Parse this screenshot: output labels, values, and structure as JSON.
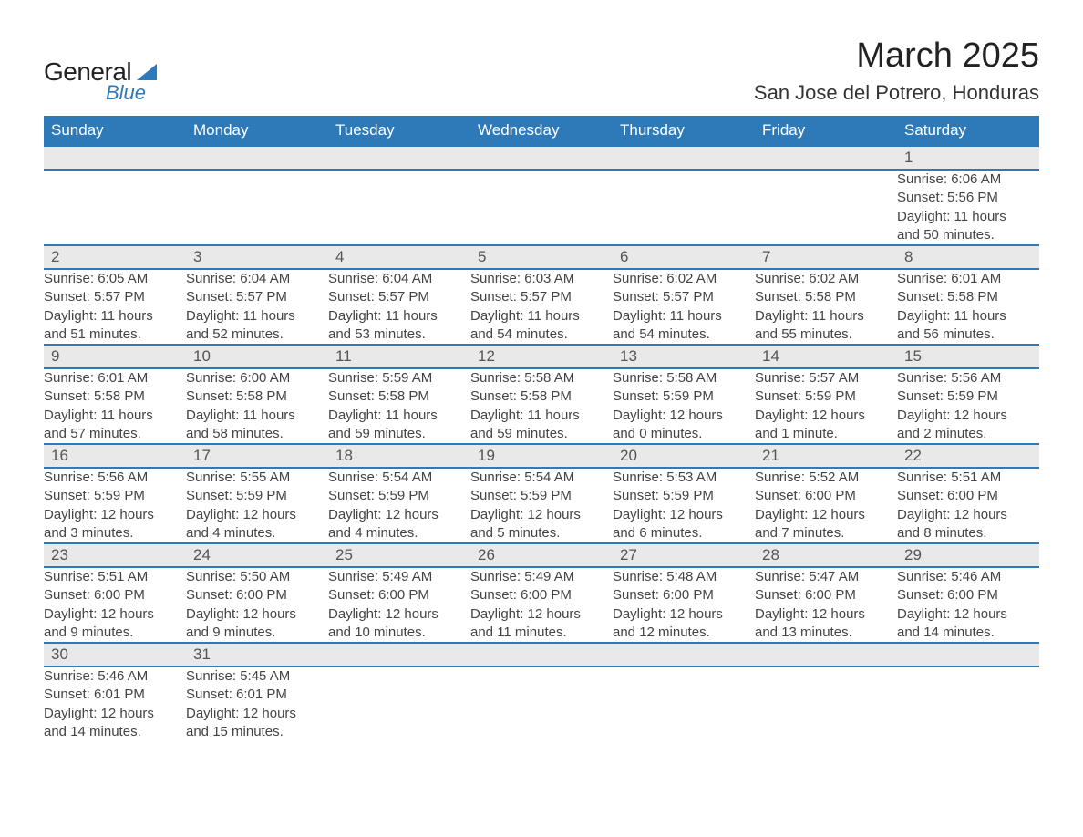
{
  "logo": {
    "word1": "General",
    "word2": "Blue"
  },
  "title": "March 2025",
  "location": "San Jose del Potrero, Honduras",
  "colors": {
    "header_bg": "#2e7ab8",
    "header_text": "#ffffff",
    "daynum_bg": "#e9e9e9",
    "rule": "#2e7ab8",
    "body_text": "#444444",
    "page_bg": "#ffffff"
  },
  "typography": {
    "title_fontsize": 38,
    "location_fontsize": 22,
    "header_fontsize": 17,
    "daynum_fontsize": 17,
    "detail_fontsize": 15
  },
  "day_headers": [
    "Sunday",
    "Monday",
    "Tuesday",
    "Wednesday",
    "Thursday",
    "Friday",
    "Saturday"
  ],
  "weeks": [
    [
      null,
      null,
      null,
      null,
      null,
      null,
      {
        "n": "1",
        "sr": "Sunrise: 6:06 AM",
        "ss": "Sunset: 5:56 PM",
        "d1": "Daylight: 11 hours",
        "d2": "and 50 minutes."
      }
    ],
    [
      {
        "n": "2",
        "sr": "Sunrise: 6:05 AM",
        "ss": "Sunset: 5:57 PM",
        "d1": "Daylight: 11 hours",
        "d2": "and 51 minutes."
      },
      {
        "n": "3",
        "sr": "Sunrise: 6:04 AM",
        "ss": "Sunset: 5:57 PM",
        "d1": "Daylight: 11 hours",
        "d2": "and 52 minutes."
      },
      {
        "n": "4",
        "sr": "Sunrise: 6:04 AM",
        "ss": "Sunset: 5:57 PM",
        "d1": "Daylight: 11 hours",
        "d2": "and 53 minutes."
      },
      {
        "n": "5",
        "sr": "Sunrise: 6:03 AM",
        "ss": "Sunset: 5:57 PM",
        "d1": "Daylight: 11 hours",
        "d2": "and 54 minutes."
      },
      {
        "n": "6",
        "sr": "Sunrise: 6:02 AM",
        "ss": "Sunset: 5:57 PM",
        "d1": "Daylight: 11 hours",
        "d2": "and 54 minutes."
      },
      {
        "n": "7",
        "sr": "Sunrise: 6:02 AM",
        "ss": "Sunset: 5:58 PM",
        "d1": "Daylight: 11 hours",
        "d2": "and 55 minutes."
      },
      {
        "n": "8",
        "sr": "Sunrise: 6:01 AM",
        "ss": "Sunset: 5:58 PM",
        "d1": "Daylight: 11 hours",
        "d2": "and 56 minutes."
      }
    ],
    [
      {
        "n": "9",
        "sr": "Sunrise: 6:01 AM",
        "ss": "Sunset: 5:58 PM",
        "d1": "Daylight: 11 hours",
        "d2": "and 57 minutes."
      },
      {
        "n": "10",
        "sr": "Sunrise: 6:00 AM",
        "ss": "Sunset: 5:58 PM",
        "d1": "Daylight: 11 hours",
        "d2": "and 58 minutes."
      },
      {
        "n": "11",
        "sr": "Sunrise: 5:59 AM",
        "ss": "Sunset: 5:58 PM",
        "d1": "Daylight: 11 hours",
        "d2": "and 59 minutes."
      },
      {
        "n": "12",
        "sr": "Sunrise: 5:58 AM",
        "ss": "Sunset: 5:58 PM",
        "d1": "Daylight: 11 hours",
        "d2": "and 59 minutes."
      },
      {
        "n": "13",
        "sr": "Sunrise: 5:58 AM",
        "ss": "Sunset: 5:59 PM",
        "d1": "Daylight: 12 hours",
        "d2": "and 0 minutes."
      },
      {
        "n": "14",
        "sr": "Sunrise: 5:57 AM",
        "ss": "Sunset: 5:59 PM",
        "d1": "Daylight: 12 hours",
        "d2": "and 1 minute."
      },
      {
        "n": "15",
        "sr": "Sunrise: 5:56 AM",
        "ss": "Sunset: 5:59 PM",
        "d1": "Daylight: 12 hours",
        "d2": "and 2 minutes."
      }
    ],
    [
      {
        "n": "16",
        "sr": "Sunrise: 5:56 AM",
        "ss": "Sunset: 5:59 PM",
        "d1": "Daylight: 12 hours",
        "d2": "and 3 minutes."
      },
      {
        "n": "17",
        "sr": "Sunrise: 5:55 AM",
        "ss": "Sunset: 5:59 PM",
        "d1": "Daylight: 12 hours",
        "d2": "and 4 minutes."
      },
      {
        "n": "18",
        "sr": "Sunrise: 5:54 AM",
        "ss": "Sunset: 5:59 PM",
        "d1": "Daylight: 12 hours",
        "d2": "and 4 minutes."
      },
      {
        "n": "19",
        "sr": "Sunrise: 5:54 AM",
        "ss": "Sunset: 5:59 PM",
        "d1": "Daylight: 12 hours",
        "d2": "and 5 minutes."
      },
      {
        "n": "20",
        "sr": "Sunrise: 5:53 AM",
        "ss": "Sunset: 5:59 PM",
        "d1": "Daylight: 12 hours",
        "d2": "and 6 minutes."
      },
      {
        "n": "21",
        "sr": "Sunrise: 5:52 AM",
        "ss": "Sunset: 6:00 PM",
        "d1": "Daylight: 12 hours",
        "d2": "and 7 minutes."
      },
      {
        "n": "22",
        "sr": "Sunrise: 5:51 AM",
        "ss": "Sunset: 6:00 PM",
        "d1": "Daylight: 12 hours",
        "d2": "and 8 minutes."
      }
    ],
    [
      {
        "n": "23",
        "sr": "Sunrise: 5:51 AM",
        "ss": "Sunset: 6:00 PM",
        "d1": "Daylight: 12 hours",
        "d2": "and 9 minutes."
      },
      {
        "n": "24",
        "sr": "Sunrise: 5:50 AM",
        "ss": "Sunset: 6:00 PM",
        "d1": "Daylight: 12 hours",
        "d2": "and 9 minutes."
      },
      {
        "n": "25",
        "sr": "Sunrise: 5:49 AM",
        "ss": "Sunset: 6:00 PM",
        "d1": "Daylight: 12 hours",
        "d2": "and 10 minutes."
      },
      {
        "n": "26",
        "sr": "Sunrise: 5:49 AM",
        "ss": "Sunset: 6:00 PM",
        "d1": "Daylight: 12 hours",
        "d2": "and 11 minutes."
      },
      {
        "n": "27",
        "sr": "Sunrise: 5:48 AM",
        "ss": "Sunset: 6:00 PM",
        "d1": "Daylight: 12 hours",
        "d2": "and 12 minutes."
      },
      {
        "n": "28",
        "sr": "Sunrise: 5:47 AM",
        "ss": "Sunset: 6:00 PM",
        "d1": "Daylight: 12 hours",
        "d2": "and 13 minutes."
      },
      {
        "n": "29",
        "sr": "Sunrise: 5:46 AM",
        "ss": "Sunset: 6:00 PM",
        "d1": "Daylight: 12 hours",
        "d2": "and 14 minutes."
      }
    ],
    [
      {
        "n": "30",
        "sr": "Sunrise: 5:46 AM",
        "ss": "Sunset: 6:01 PM",
        "d1": "Daylight: 12 hours",
        "d2": "and 14 minutes."
      },
      {
        "n": "31",
        "sr": "Sunrise: 5:45 AM",
        "ss": "Sunset: 6:01 PM",
        "d1": "Daylight: 12 hours",
        "d2": "and 15 minutes."
      },
      null,
      null,
      null,
      null,
      null
    ]
  ]
}
